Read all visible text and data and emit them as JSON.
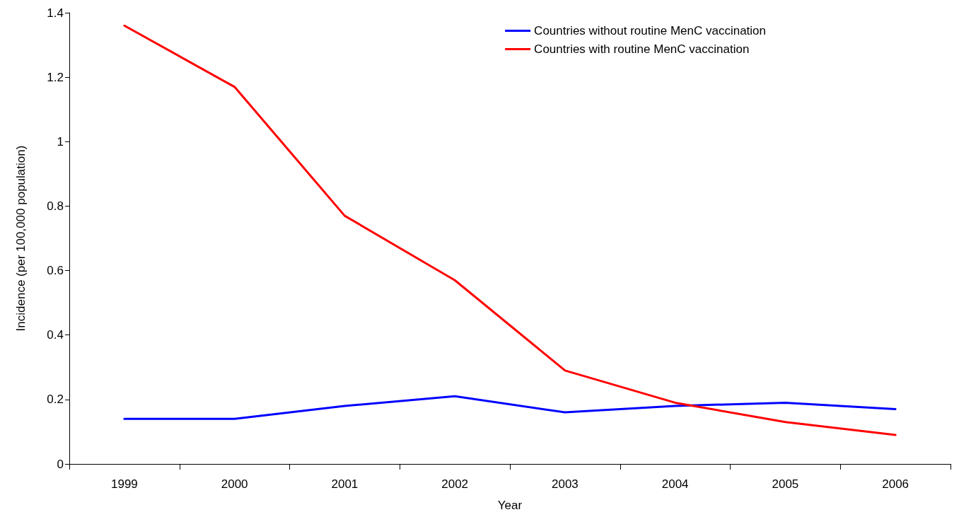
{
  "chart_data": {
    "type": "line",
    "xlabel": "Year",
    "ylabel": "Incidence (per 100,000 population)",
    "categories": [
      "1999",
      "2000",
      "2001",
      "2002",
      "2003",
      "2004",
      "2005",
      "2006"
    ],
    "series": [
      {
        "name": "Countries without routine MenC vaccination",
        "color": "#0000ff",
        "values": [
          0.14,
          0.14,
          0.18,
          0.21,
          0.16,
          0.18,
          0.19,
          0.17
        ]
      },
      {
        "name": "Countries with routine MenC vaccination",
        "color": "#ff0000",
        "values": [
          1.36,
          1.17,
          0.77,
          0.57,
          0.29,
          0.19,
          0.13,
          0.09
        ]
      }
    ],
    "ylim": [
      0,
      1.4
    ],
    "yticks": [
      0,
      0.2,
      0.4,
      0.6,
      0.8,
      1,
      1.2,
      1.4
    ],
    "grid": false,
    "legend": "top right",
    "marker": "none",
    "line_style": "solid"
  }
}
